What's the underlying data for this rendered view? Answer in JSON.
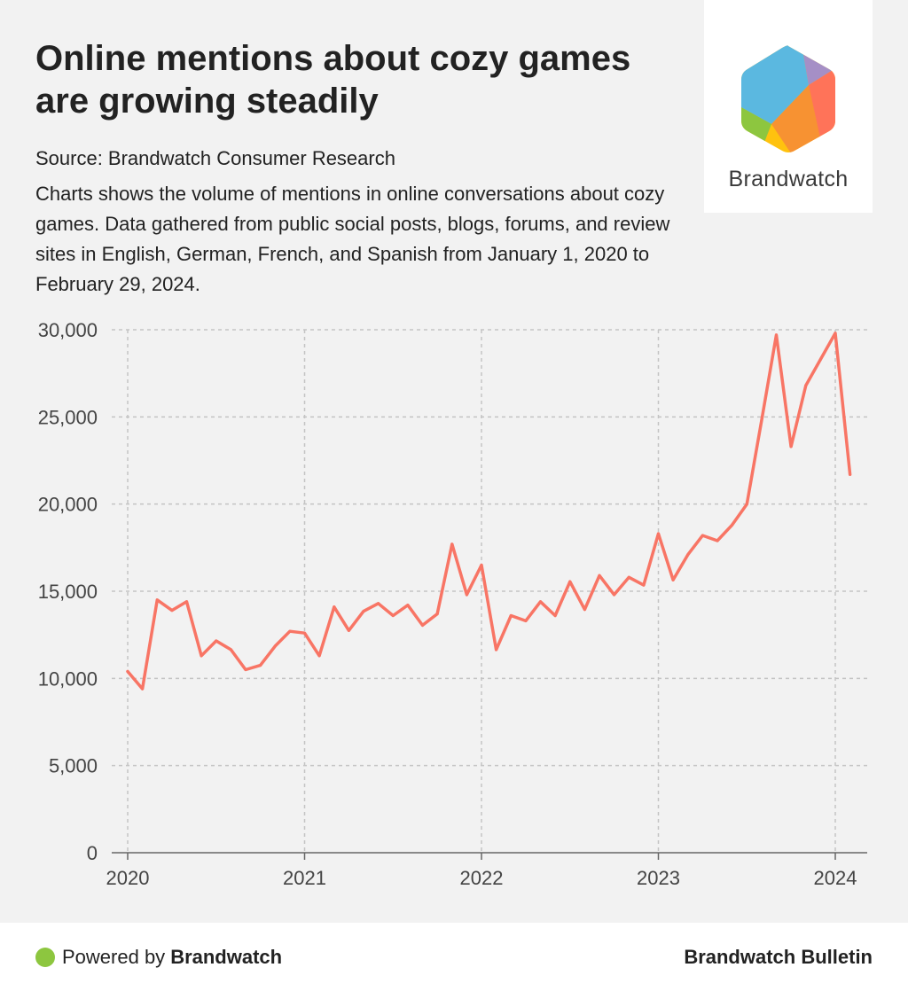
{
  "header": {
    "title": "Online mentions about cozy games are growing steadily",
    "source": "Source: Brandwatch Consumer Research",
    "description": "Charts shows the volume of mentions in online conversations about cozy games. Data gathered from public social posts, blogs, forums, and review sites in English, German, French, and Spanish from January 1, 2020 to February 29, 2024."
  },
  "logo": {
    "name": "Brandwatch",
    "icon": "brandwatch-hexagon-logo",
    "colors": [
      "#5bb8e0",
      "#a58fc6",
      "#ff7359",
      "#f79232",
      "#ffc20e",
      "#8dc63f"
    ]
  },
  "footer": {
    "powered_prefix": "Powered by",
    "powered_brand": "Brandwatch",
    "right_label": "Brandwatch Bulletin"
  },
  "colors": {
    "line": "#f87565",
    "grid": "#c4c4c4",
    "background": "#f2f2f2",
    "dot": "#8dc63f"
  },
  "chart_data": {
    "type": "line",
    "title": "",
    "xlabel": "",
    "ylabel": "",
    "ylim": [
      0,
      30000
    ],
    "yticks": [
      0,
      5000,
      10000,
      15000,
      20000,
      25000,
      30000
    ],
    "ytick_labels": [
      "0",
      "5,000",
      "10,000",
      "15,000",
      "20,000",
      "25,000",
      "30,000"
    ],
    "xlim": [
      "2020-01",
      "2024-02"
    ],
    "xticks": [
      "2020-01",
      "2021-01",
      "2022-01",
      "2023-01",
      "2024-01"
    ],
    "xtick_labels": [
      "2020",
      "2021",
      "2022",
      "2023",
      "2024"
    ],
    "grid": true,
    "series": [
      {
        "x": [
          "2020-01",
          "2020-02",
          "2020-03",
          "2020-04",
          "2020-05",
          "2020-06",
          "2020-07",
          "2020-08",
          "2020-09",
          "2020-10",
          "2020-11",
          "2020-12",
          "2021-01",
          "2021-02",
          "2021-03",
          "2021-04",
          "2021-05",
          "2021-06",
          "2021-07",
          "2021-08",
          "2021-09",
          "2021-10",
          "2021-11",
          "2021-12",
          "2022-01",
          "2022-02",
          "2022-03",
          "2022-04",
          "2022-05",
          "2022-06",
          "2022-07",
          "2022-08",
          "2022-09",
          "2022-10",
          "2022-11",
          "2022-12",
          "2023-01",
          "2023-02",
          "2023-03",
          "2023-04",
          "2023-05",
          "2023-06",
          "2023-07",
          "2023-08",
          "2023-09",
          "2023-10",
          "2023-11",
          "2023-12",
          "2024-01",
          "2024-02"
        ],
        "values": [
          10400,
          9400,
          14500,
          13900,
          14400,
          11300,
          12150,
          11650,
          10500,
          10750,
          11850,
          12700,
          12600,
          11300,
          14100,
          12750,
          13850,
          14300,
          13600,
          14200,
          13050,
          13700,
          17700,
          14800,
          16500,
          11650,
          13600,
          13300,
          14400,
          13600,
          15550,
          13950,
          15900,
          14800,
          15800,
          15350,
          18300,
          15650,
          17100,
          18200,
          17900,
          18800,
          20000,
          24800,
          29700,
          23300,
          26800,
          28300,
          29800,
          21700
        ]
      }
    ]
  }
}
